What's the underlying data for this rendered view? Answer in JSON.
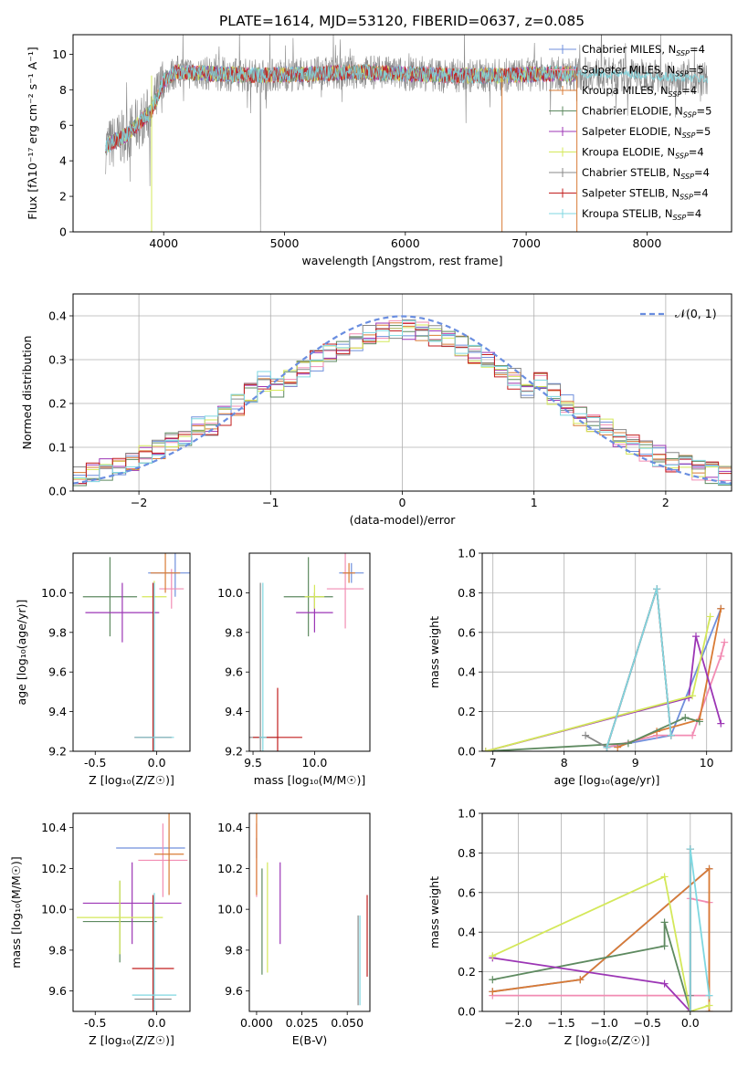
{
  "figure_title": "PLATE=1614, MJD=53120, FIBERID=0637, z=0.085",
  "colors": {
    "chabrier_miles": "#6f8fdc",
    "salpeter_miles": "#f28cb3",
    "kroupa_miles": "#d97b35",
    "chabrier_elodie": "#5e8a60",
    "salpeter_elodie": "#9c36b5",
    "kroupa_elodie": "#d4e85a",
    "chabrier_stelib": "#888888",
    "salpeter_stelib": "#c21e1e",
    "kroupa_stelib": "#7fd7e0",
    "gaussian": "#6a8ee0"
  },
  "chart_data": [
    {
      "id": "spectrum",
      "type": "line",
      "xlabel": "wavelength [Angstrom, rest frame]",
      "ylabel": "Flux [fλ10⁻¹⁷ erg cm⁻² s⁻¹ A⁻¹]",
      "xlim": [
        3250,
        8700
      ],
      "ylim": [
        0,
        11.1
      ],
      "xticks": [
        4000,
        5000,
        6000,
        7000,
        8000
      ],
      "yticks": [
        0,
        2,
        4,
        6,
        8,
        10
      ],
      "legend": "top-right",
      "data_range_observed": [
        3520,
        8500
      ],
      "model_range": [
        3520,
        7420
      ],
      "continuum_nodes": {
        "x": [
          3520,
          3700,
          3900,
          4000,
          4100,
          4400,
          4800,
          5200,
          5600,
          6000,
          6400,
          6800,
          7200,
          7600,
          8000,
          8500
        ],
        "y": [
          4.8,
          5.5,
          6.8,
          8.5,
          9.0,
          8.9,
          8.8,
          8.9,
          9.0,
          8.9,
          8.8,
          8.8,
          8.9,
          8.9,
          8.8,
          8.6
        ]
      },
      "series": [
        {
          "name": "Chabrier MILES, N_SSP=4",
          "color_key": "chabrier_miles"
        },
        {
          "name": "Salpeter MILES, N_SSP=5",
          "color_key": "salpeter_miles"
        },
        {
          "name": "Kroupa MILES, N_SSP=4",
          "color_key": "kroupa_miles"
        },
        {
          "name": "Chabrier ELODIE, N_SSP=5",
          "color_key": "chabrier_elodie"
        },
        {
          "name": "Salpeter ELODIE, N_SSP=5",
          "color_key": "salpeter_elodie"
        },
        {
          "name": "Kroupa ELODIE, N_SSP=4",
          "color_key": "kroupa_elodie"
        },
        {
          "name": "Chabrier STELIB, N_SSP=4",
          "color_key": "chabrier_stelib"
        },
        {
          "name": "Salpeter STELIB, N_SSP=4",
          "color_key": "salpeter_stelib"
        },
        {
          "name": "Kroupa STELIB, N_SSP=4",
          "color_key": "kroupa_stelib"
        }
      ]
    },
    {
      "id": "residuals",
      "type": "histogram",
      "xlabel": "(data-model)/error",
      "ylabel": "Normed distribution",
      "xlim": [
        -2.5,
        2.5
      ],
      "ylim": [
        0,
        0.45
      ],
      "xticks": [
        -2,
        -1,
        0,
        1,
        2
      ],
      "yticks": [
        0.0,
        0.1,
        0.2,
        0.3,
        0.4
      ],
      "grid": true,
      "legend_label": "𝒩(0, 1)",
      "legend": "top-right",
      "bin_width": 0.1,
      "bin_start": -2.5
    },
    {
      "id": "age_vs_Z",
      "type": "errorbar",
      "xlabel": "Z [log₁₀(Z/Z☉)]",
      "ylabel": "age  [log₁₀(age/yr)]",
      "xlim": [
        -0.68,
        0.27
      ],
      "ylim": [
        9.2,
        10.2
      ],
      "xticks": [
        -0.5,
        0.0
      ],
      "yticks": [
        9.2,
        9.4,
        9.6,
        9.8,
        10.0
      ],
      "bars": [
        {
          "c": "chabrier_miles",
          "x": 0.15,
          "y": 10.1,
          "xe": 0.22,
          "ye": 0.12
        },
        {
          "c": "salpeter_miles",
          "x": 0.12,
          "y": 10.02,
          "xe": 0.1,
          "ye": 0.1
        },
        {
          "c": "kroupa_miles",
          "x": 0.07,
          "y": 10.1,
          "xe": 0.12,
          "ye": 0.1
        },
        {
          "c": "chabrier_elodie",
          "x": -0.38,
          "y": 9.98,
          "xe": 0.22,
          "ye": 0.2
        },
        {
          "c": "salpeter_elodie",
          "x": -0.28,
          "y": 9.9,
          "xe": 0.3,
          "ye": 0.15
        },
        {
          "c": "kroupa_elodie",
          "x": -0.02,
          "y": 9.98,
          "xe": 0.1,
          "ye": 0.08
        },
        {
          "c": "chabrier_stelib",
          "x": -0.03,
          "y": 9.27,
          "xe": 0.15,
          "ye": 0.78
        },
        {
          "c": "salpeter_stelib",
          "x": -0.03,
          "y": 9.27,
          "xe": 0.15,
          "ye": 0.78
        },
        {
          "c": "kroupa_stelib",
          "x": -0.02,
          "y": 9.27,
          "xe": 0.16,
          "ye": 0.78
        }
      ]
    },
    {
      "id": "age_vs_mass",
      "type": "errorbar",
      "xlabel": "mass [log₁₀(M/M☉)]",
      "ylabel": "",
      "xlim": [
        9.47,
        10.45
      ],
      "ylim": [
        9.2,
        10.2
      ],
      "xticks": [
        9.5,
        10.0
      ],
      "yticks": [
        9.2,
        9.4,
        9.6,
        9.8,
        10.0
      ],
      "bars": [
        {
          "c": "chabrier_miles",
          "x": 10.3,
          "y": 10.1,
          "xe": 0.1,
          "ye": 0.05
        },
        {
          "c": "salpeter_miles",
          "x": 10.25,
          "y": 10.02,
          "xe": 0.15,
          "ye": 0.2
        },
        {
          "c": "kroupa_miles",
          "x": 10.28,
          "y": 10.1,
          "xe": 0.05,
          "ye": 0.05
        },
        {
          "c": "chabrier_elodie",
          "x": 9.95,
          "y": 9.98,
          "xe": 0.2,
          "ye": 0.2
        },
        {
          "c": "salpeter_elodie",
          "x": 10.0,
          "y": 9.9,
          "xe": 0.15,
          "ye": 0.1
        },
        {
          "c": "kroupa_elodie",
          "x": 10.0,
          "y": 9.98,
          "xe": 0.08,
          "ye": 0.06
        },
        {
          "c": "chabrier_stelib",
          "x": 9.56,
          "y": 9.27,
          "xe": 0.15,
          "ye": 0.78
        },
        {
          "c": "salpeter_stelib",
          "x": 9.7,
          "y": 9.27,
          "xe": 0.2,
          "ye": 0.25
        },
        {
          "c": "kroupa_stelib",
          "x": 9.58,
          "y": 9.27,
          "xe": 0.03,
          "ye": 0.78
        }
      ]
    },
    {
      "id": "weight_vs_age",
      "type": "line",
      "xlabel": "age  [log₁₀(age/yr)]",
      "ylabel": "mass weight",
      "xlim": [
        6.85,
        10.35
      ],
      "ylim": [
        0,
        1.0
      ],
      "xticks": [
        7,
        8,
        9,
        10
      ],
      "yticks": [
        0.0,
        0.2,
        0.4,
        0.6,
        0.8,
        1.0
      ],
      "grid": true,
      "series": [
        {
          "c": "chabrier_miles",
          "x": [
            9.3,
            8.6,
            9.5,
            10.2
          ],
          "y": [
            0.82,
            0.02,
            0.08,
            0.72
          ]
        },
        {
          "c": "salpeter_miles",
          "x": [
            8.6,
            9.3,
            9.8,
            10.2,
            10.25
          ],
          "y": [
            0.02,
            0.08,
            0.08,
            0.48,
            0.55
          ]
        },
        {
          "c": "kroupa_miles",
          "x": [
            8.75,
            9.3,
            9.9,
            10.2
          ],
          "y": [
            0.02,
            0.1,
            0.16,
            0.72
          ]
        },
        {
          "c": "chabrier_elodie",
          "x": [
            6.9,
            8.9,
            9.7,
            9.9
          ],
          "y": [
            0.0,
            0.04,
            0.17,
            0.15
          ]
        },
        {
          "c": "salpeter_elodie",
          "x": [
            6.9,
            9.75,
            9.85,
            10.2
          ],
          "y": [
            0.0,
            0.27,
            0.58,
            0.14
          ]
        },
        {
          "c": "kroupa_elodie",
          "x": [
            6.9,
            9.8,
            10.05
          ],
          "y": [
            0.0,
            0.28,
            0.68
          ]
        },
        {
          "c": "chabrier_stelib",
          "x": [
            8.3,
            8.6,
            9.3,
            9.5
          ],
          "y": [
            0.08,
            0.02,
            0.82,
            0.08
          ]
        },
        {
          "c": "salpeter_stelib",
          "x": [
            8.6,
            9.3,
            9.5
          ],
          "y": [
            0.02,
            0.82,
            0.08
          ]
        },
        {
          "c": "kroupa_stelib",
          "x": [
            8.6,
            9.3,
            9.5
          ],
          "y": [
            0.02,
            0.82,
            0.08
          ]
        }
      ]
    },
    {
      "id": "mass_vs_Z",
      "type": "errorbar",
      "xlabel": "Z [log₁₀(Z/Z☉)]",
      "ylabel": "mass [log₁₀(M/M☉)]",
      "xlim": [
        -0.68,
        0.27
      ],
      "ylim": [
        9.5,
        10.47
      ],
      "xticks": [
        -0.5,
        0.0
      ],
      "yticks": [
        9.6,
        9.8,
        10.0,
        10.2,
        10.4
      ],
      "bars": [
        {
          "c": "chabrier_miles",
          "x": -0.05,
          "y": 10.3,
          "xe": 0.28,
          "ye": 0.0
        },
        {
          "c": "salpeter_miles",
          "x": 0.05,
          "y": 10.24,
          "xe": 0.2,
          "ye": 0.18
        },
        {
          "c": "kroupa_miles",
          "x": 0.1,
          "y": 10.27,
          "xe": 0.12,
          "ye": 0.2
        },
        {
          "c": "chabrier_elodie",
          "x": -0.3,
          "y": 9.94,
          "xe": 0.3,
          "ye": 0.2
        },
        {
          "c": "salpeter_elodie",
          "x": -0.2,
          "y": 10.03,
          "xe": 0.4,
          "ye": 0.2
        },
        {
          "c": "kroupa_elodie",
          "x": -0.3,
          "y": 9.96,
          "xe": 0.35,
          "ye": 0.18
        },
        {
          "c": "chabrier_stelib",
          "x": -0.03,
          "y": 9.56,
          "xe": 0.15,
          "ye": 0.5
        },
        {
          "c": "salpeter_stelib",
          "x": -0.03,
          "y": 9.71,
          "xe": 0.17,
          "ye": 0.36
        },
        {
          "c": "kroupa_stelib",
          "x": -0.02,
          "y": 9.58,
          "xe": 0.18,
          "ye": 0.5
        }
      ]
    },
    {
      "id": "mass_vs_ebv",
      "type": "errorbar",
      "xlabel": "E(B-V)",
      "ylabel": "",
      "xlim": [
        -0.004,
        0.0625
      ],
      "ylim": [
        9.5,
        10.47
      ],
      "xticks": [
        0.0,
        0.025,
        0.05
      ],
      "yticks": [
        9.6,
        9.8,
        10.0,
        10.2,
        10.4
      ],
      "bars": [
        {
          "c": "chabrier_miles",
          "x": 0.0,
          "y": 10.3,
          "xe": 0,
          "ye": 0.05
        },
        {
          "c": "salpeter_miles",
          "x": 0.0,
          "y": 10.24,
          "xe": 0,
          "ye": 0.18
        },
        {
          "c": "kroupa_miles",
          "x": 0.0,
          "y": 10.27,
          "xe": 0,
          "ye": 0.2
        },
        {
          "c": "chabrier_elodie",
          "x": 0.003,
          "y": 9.94,
          "xe": 0,
          "ye": 0.26
        },
        {
          "c": "salpeter_elodie",
          "x": 0.013,
          "y": 10.03,
          "xe": 0,
          "ye": 0.2
        },
        {
          "c": "kroupa_elodie",
          "x": 0.006,
          "y": 9.96,
          "xe": 0,
          "ye": 0.27
        },
        {
          "c": "chabrier_stelib",
          "x": 0.056,
          "y": 9.75,
          "xe": 0,
          "ye": 0.22
        },
        {
          "c": "salpeter_stelib",
          "x": 0.061,
          "y": 9.87,
          "xe": 0,
          "ye": 0.2
        },
        {
          "c": "kroupa_stelib",
          "x": 0.057,
          "y": 9.75,
          "xe": 0,
          "ye": 0.22
        }
      ]
    },
    {
      "id": "weight_vs_Z",
      "type": "line",
      "xlabel": "Z [log₁₀(Z/Z☉)]",
      "ylabel": "mass weight",
      "xlim": [
        -2.42,
        0.48
      ],
      "ylim": [
        0,
        1.0
      ],
      "xticks": [
        -2.0,
        -1.5,
        -1.0,
        -0.5,
        0.0
      ],
      "yticks": [
        0.0,
        0.2,
        0.4,
        0.6,
        0.8,
        1.0
      ],
      "grid": true,
      "series": [
        {
          "c": "chabrier_miles",
          "x": [
            -2.3,
            -1.28,
            0.22
          ],
          "y": [
            0.1,
            0.16,
            0.72
          ]
        },
        {
          "c": "salpeter_miles",
          "x": [
            -2.3,
            0.0,
            0.22,
            0.22,
            0.0
          ],
          "y": [
            0.08,
            0.08,
            0.08,
            0.55,
            0.57
          ]
        },
        {
          "c": "kroupa_miles",
          "x": [
            -2.3,
            -1.28,
            0.22,
            0.22
          ],
          "y": [
            0.1,
            0.16,
            0.72,
            0.0
          ]
        },
        {
          "c": "chabrier_elodie",
          "x": [
            -2.3,
            -0.3,
            -0.3,
            0.0
          ],
          "y": [
            0.16,
            0.33,
            0.45,
            0.0
          ]
        },
        {
          "c": "salpeter_elodie",
          "x": [
            -2.3,
            -0.3,
            0.0
          ],
          "y": [
            0.27,
            0.14,
            0.0
          ]
        },
        {
          "c": "kroupa_elodie",
          "x": [
            -2.3,
            -0.3,
            0.0,
            0.22
          ],
          "y": [
            0.28,
            0.68,
            0.0,
            0.03
          ]
        },
        {
          "c": "chabrier_stelib",
          "x": [
            0.0,
            0.0,
            0.0
          ],
          "y": [
            0.0,
            0.82,
            0.08
          ]
        },
        {
          "c": "salpeter_stelib",
          "x": [
            0.0,
            0.0
          ],
          "y": [
            0.0,
            0.82
          ]
        },
        {
          "c": "kroupa_stelib",
          "x": [
            0.0,
            0.0,
            0.22
          ],
          "y": [
            0.0,
            0.82,
            0.08
          ]
        }
      ]
    }
  ]
}
